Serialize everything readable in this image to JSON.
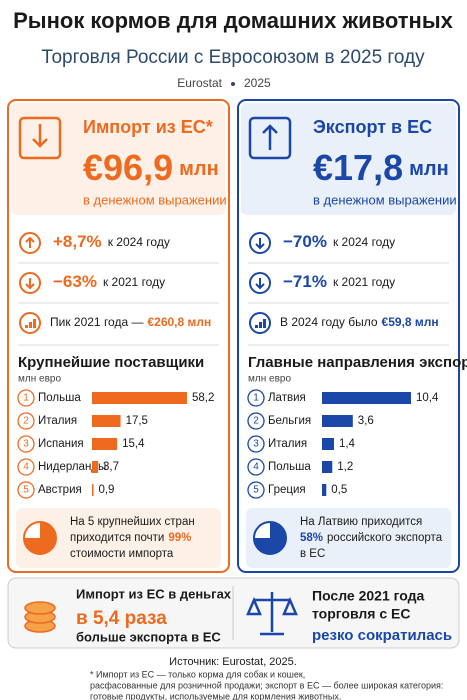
{
  "header": {
    "title": "Рынок кормов для домашних животных",
    "subtitle": "Торговля России с Евросоюзом в 2025 году",
    "source": "Eurostat",
    "year": "2025"
  },
  "import": {
    "title": "Импорт из ЕС*",
    "amount": "€96,9",
    "unit": "млн",
    "caption": "в денежном выражении",
    "changes": [
      {
        "value": "+8,7%",
        "label": "к 2024 году"
      },
      {
        "value": "−63%",
        "label": "к 2021 году"
      }
    ],
    "peak": {
      "label": "Пик 2021 года —",
      "value": "€260,8 млн"
    },
    "chart": {
      "title": "Крупнейшие поставщики",
      "unit": "млн евро",
      "rows": [
        {
          "rank": "1",
          "name": "Польша",
          "value": 58.2,
          "value_label": "58,2"
        },
        {
          "rank": "2",
          "name": "Италия",
          "value": 17.5,
          "value_label": "17,5"
        },
        {
          "rank": "3",
          "name": "Испания",
          "value": 15.4,
          "value_label": "15,4"
        },
        {
          "rank": "4",
          "name": "Нидерланды",
          "value": 3.7,
          "value_label": "3,7"
        },
        {
          "rank": "5",
          "name": "Австрия",
          "value": 0.9,
          "value_label": "0,9"
        }
      ]
    },
    "note": {
      "line1": "На 5 крупнейших стран",
      "line2": "приходится почти",
      "highlight": "99%",
      "line3": "стоимости импорта"
    }
  },
  "export": {
    "title": "Экспорт в ЕС",
    "amount": "€17,8",
    "unit": "млн",
    "caption": "в денежном выражении",
    "changes": [
      {
        "value": "−70%",
        "label": "к 2024 году"
      },
      {
        "value": "−71%",
        "label": "к 2021 году"
      }
    ],
    "peak": {
      "label": "В 2024 году было",
      "value": "€59,8 млн"
    },
    "chart": {
      "title": "Главные направления экспорта",
      "unit": "млн евро",
      "rows": [
        {
          "rank": "1",
          "name": "Латвия",
          "value": 10.4,
          "value_label": "10,4"
        },
        {
          "rank": "2",
          "name": "Бельгия",
          "value": 3.6,
          "value_label": "3,6"
        },
        {
          "rank": "3",
          "name": "Италия",
          "value": 1.4,
          "value_label": "1,4"
        },
        {
          "rank": "4",
          "name": "Польша",
          "value": 1.2,
          "value_label": "1,2"
        },
        {
          "rank": "5",
          "name": "Греция",
          "value": 0.5,
          "value_label": "0,5"
        }
      ]
    },
    "note": {
      "line1": "На Латвию приходится",
      "highlight": "58%",
      "line2": "российского экспорта",
      "line3": "в ЕС"
    }
  },
  "summary": [
    {
      "line1": "Импорт из ЕС в деньгах",
      "highlight": "в 5,4 раза",
      "line3": "больше экспорта в ЕС"
    },
    {
      "line1": "После 2021 года",
      "line2": "торговля с ЕС",
      "highlight": "резко сократилась"
    }
  ],
  "footer": {
    "source": "Источник: Eurostat, 2025.",
    "notes": [
      "* Импорт из ЕС — только корма для собак и кошек,",
      "расфасованные для розничной продажи; экспорт в ЕС — более широкая категория:",
      "готовые продукты, используемые для кормления животных."
    ]
  }
}
